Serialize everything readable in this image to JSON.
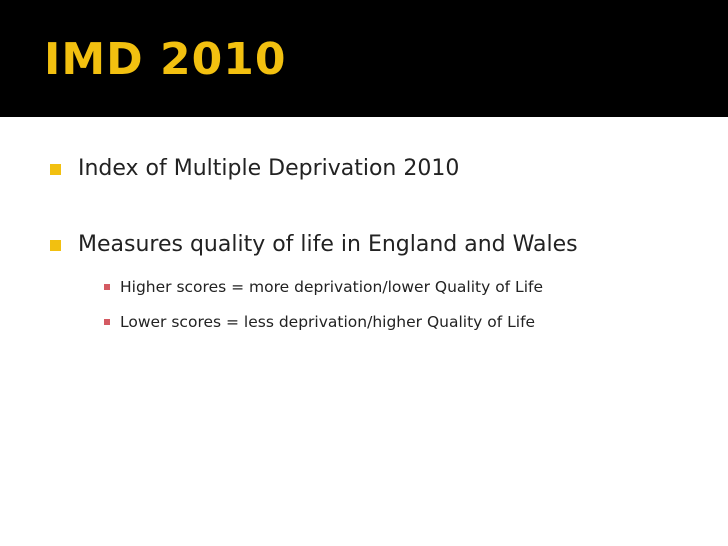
{
  "slide": {
    "title": "IMD 2010",
    "bullets": [
      {
        "text": "Index of Multiple Deprivation 2010"
      },
      {
        "text": "Measures quality of life in England and Wales"
      }
    ],
    "sub_bullets": [
      {
        "text": "Higher scores = more deprivation/lower Quality of Life"
      },
      {
        "text": "Lower scores = less deprivation/higher Quality of Life"
      }
    ]
  },
  "colors": {
    "title_bar": "#000000",
    "title_text": "#f2c010",
    "bullet_marker": "#f2c010",
    "sub_bullet_marker": "#d45a62",
    "body_text": "#222222"
  }
}
